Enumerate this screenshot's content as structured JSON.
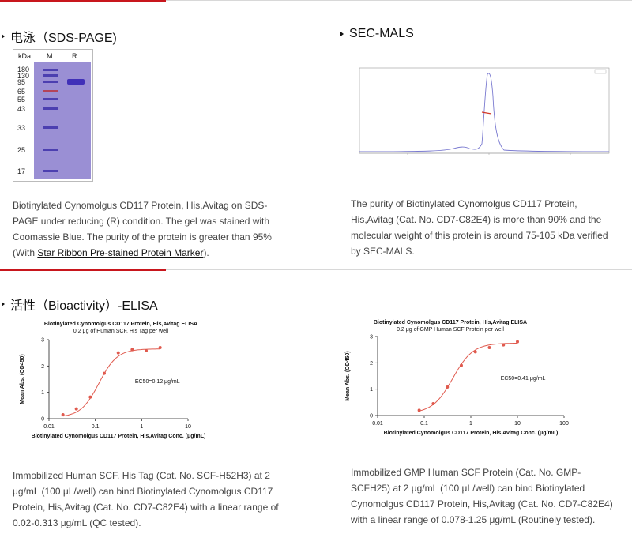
{
  "sections": {
    "sds": {
      "title": "电泳（SDS-PAGE)",
      "gel": {
        "kda_label": "kDa",
        "lane_m": "M",
        "lane_r": "R",
        "markers": [
          "180",
          "130",
          "95",
          "65",
          "55",
          "43",
          "33",
          "25",
          "17"
        ],
        "sample_band_kda": 95
      },
      "text_before_link": "Biotinylated Cynomolgus CD117 Protein, His,Avitag on SDS-PAGE under reducing (R) condition. The gel was stained with Coomassie Blue. The purity of the protein is greater than 95% (With ",
      "link_text": "Star Ribbon Pre-stained Protein Marker",
      "text_after_link": ")."
    },
    "secmals": {
      "title": "SEC-MALS",
      "text": "The purity of Biotinylated Cynomolgus CD117 Protein, His,Avitag (Cat. No. CD7-C82E4) is more than 90% and the molecular weight of this protein is around 75-105 kDa verified by SEC-MALS."
    },
    "bioactivity": {
      "title": "活性（Bioactivity）-ELISA",
      "left_text": "Immobilized Human SCF, His Tag (Cat. No. SCF-H52H3) at 2 μg/mL (100 μL/well) can bind Biotinylated Cynomolgus CD117 Protein, His,Avitag (Cat. No. CD7-C82E4) with a linear range of 0.02-0.313 μg/mL (QC tested).",
      "right_text": "Immobilized GMP Human SCF Protein (Cat. No. GMP-SCFH25) at 2 μg/mL (100 μL/well) can bind Biotinylated Cynomolgus CD117 Protein, His,Avitag (Cat. No. CD7-C82E4) with a linear range of 0.078-1.25 μg/mL (Routinely tested)."
    }
  },
  "colors": {
    "accent_red": "#c8161d",
    "curve_red": "#e05a4e",
    "gel_blue": "#9a8fd4"
  },
  "chart_data": [
    {
      "type": "line",
      "title": "Biotinylated Cynomolgus CD117 Protein, His,Avitag ELISA",
      "subtitle": "0.2 μg of Human SCF, His Tag per well",
      "xlabel": "Biotinylated Cynomolgus CD117 Protein, His,Avitag Conc. (μg/mL)",
      "ylabel": "Mean Abs. (OD450)",
      "xscale": "log",
      "xlim": [
        0.01,
        10
      ],
      "ylim": [
        0,
        3
      ],
      "xticks": [
        "0.01",
        "0.1",
        "1",
        "10"
      ],
      "yticks": [
        "0",
        "1",
        "2",
        "3"
      ],
      "annotation": "EC50=0.12 μg/mL",
      "ec50": 0.12,
      "bottom": 0.05,
      "top": 2.65,
      "hill": 2.2,
      "x": [
        0.02,
        0.039,
        0.078,
        0.156,
        0.313,
        0.625,
        1.25,
        2.5
      ],
      "y": [
        0.15,
        0.37,
        0.82,
        1.72,
        2.5,
        2.62,
        2.58,
        2.7
      ]
    },
    {
      "type": "line",
      "title": "Biotinylated Cynomolgus CD117 Protein, His,Avitag ELISA",
      "subtitle": "0.2 μg of GMP Human SCF Protein per well",
      "xlabel": "Biotinylated Cynomolgus CD117 Protein, His,Avitag Conc. (μg/mL)",
      "ylabel": "Mean Abs. (OD450)",
      "xscale": "log",
      "xlim": [
        0.01,
        100
      ],
      "ylim": [
        0,
        3
      ],
      "xticks": [
        "0.01",
        "0.1",
        "1",
        "10",
        "100"
      ],
      "yticks": [
        "0",
        "1",
        "2",
        "3"
      ],
      "annotation": "EC50=0.41 μg/mL",
      "ec50": 0.41,
      "bottom": 0.08,
      "top": 2.75,
      "hill": 2.0,
      "x": [
        0.078,
        0.156,
        0.313,
        0.625,
        1.25,
        2.5,
        5,
        10
      ],
      "y": [
        0.2,
        0.45,
        1.08,
        1.9,
        2.42,
        2.58,
        2.68,
        2.8
      ]
    }
  ]
}
